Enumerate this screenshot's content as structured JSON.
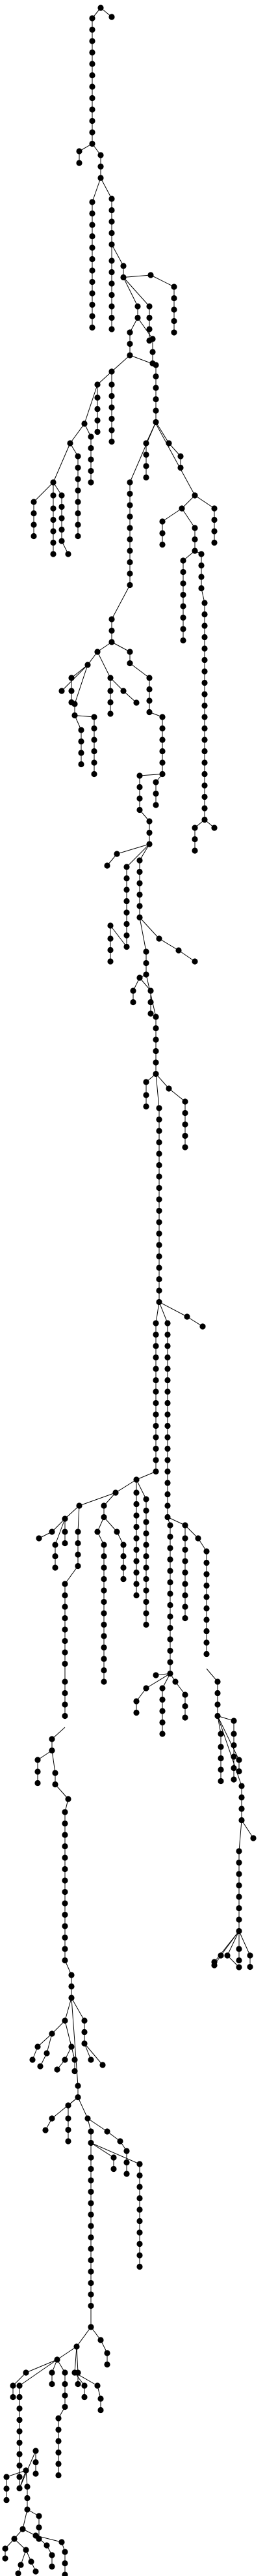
{
  "diagram": {
    "type": "tree",
    "colors": {
      "node": "#000000",
      "edge": "#000000",
      "background": "#ffffff"
    },
    "labels": []
  }
}
